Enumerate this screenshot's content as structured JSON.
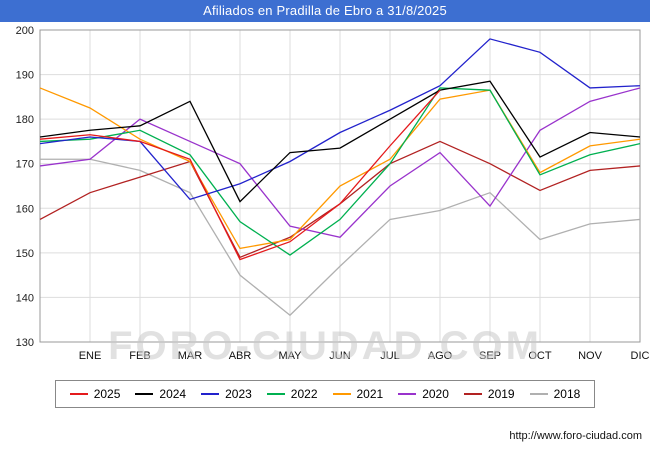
{
  "title_bar": {
    "text": "Afiliados en Pradilla de Ebro a 31/8/2025",
    "bg": "#3D6FD1",
    "fg": "#FFFFFF"
  },
  "watermark": "FORO-CIUDAD.COM",
  "footer": {
    "url": "http://www.foro-ciudad.com"
  },
  "chart_data": {
    "type": "line",
    "title": "Afiliados en Pradilla de Ebro a 31/8/2025",
    "xlabel": "",
    "ylabel": "",
    "ylim": [
      130,
      200
    ],
    "yticks": [
      130,
      140,
      150,
      160,
      170,
      180,
      190,
      200
    ],
    "months": [
      "ENE",
      "FEB",
      "MAR",
      "ABR",
      "MAY",
      "JUN",
      "JUL",
      "AGO",
      "SEP",
      "OCT",
      "NOV",
      "DIC"
    ],
    "x_layout": "13 evenly spaced points per full series: left-edge start value followed by the 12 month tick positions; the 2025 series ends at AGO (data to 31/8/2025)",
    "grid": true,
    "legend_position": "bottom",
    "series": [
      {
        "name": "2025",
        "color": "#E41A1C",
        "values": [
          175.5,
          176.5,
          175,
          171,
          148.5,
          152.5,
          161,
          174,
          186.5
        ]
      },
      {
        "name": "2024",
        "color": "#000000",
        "values": [
          176,
          177.5,
          178.5,
          184,
          161.5,
          172.5,
          173.5,
          180,
          186.5,
          188.5,
          171.5,
          177,
          176
        ]
      },
      {
        "name": "2023",
        "color": "#2222CC",
        "values": [
          174.5,
          176,
          175,
          162,
          165.5,
          170.5,
          177,
          182,
          187.5,
          198,
          195,
          187,
          187.5
        ]
      },
      {
        "name": "2022",
        "color": "#00B050",
        "values": [
          175,
          175.5,
          177.5,
          172,
          157,
          149.5,
          157.5,
          170,
          187,
          186.5,
          167.5,
          172,
          174.5
        ]
      },
      {
        "name": "2021",
        "color": "#FF9900",
        "values": [
          187,
          182.5,
          175.5,
          170.5,
          151,
          153,
          165,
          171,
          184.5,
          186.5,
          168,
          174,
          175.5
        ]
      },
      {
        "name": "2020",
        "color": "#9933CC",
        "values": [
          169.5,
          171,
          180,
          175,
          170,
          156,
          153.5,
          165,
          172.5,
          160.5,
          177.5,
          184,
          187
        ]
      },
      {
        "name": "2019",
        "color": "#B22222",
        "values": [
          157.5,
          163.5,
          167,
          170.5,
          149,
          153.5,
          161,
          170,
          175,
          170,
          164,
          168.5,
          169.5
        ]
      },
      {
        "name": "2018",
        "color": "#B0B0B0",
        "values": [
          171,
          171,
          168.5,
          163.5,
          145,
          136,
          147,
          157.5,
          159.5,
          163.5,
          153,
          156.5,
          157.5
        ]
      }
    ]
  }
}
